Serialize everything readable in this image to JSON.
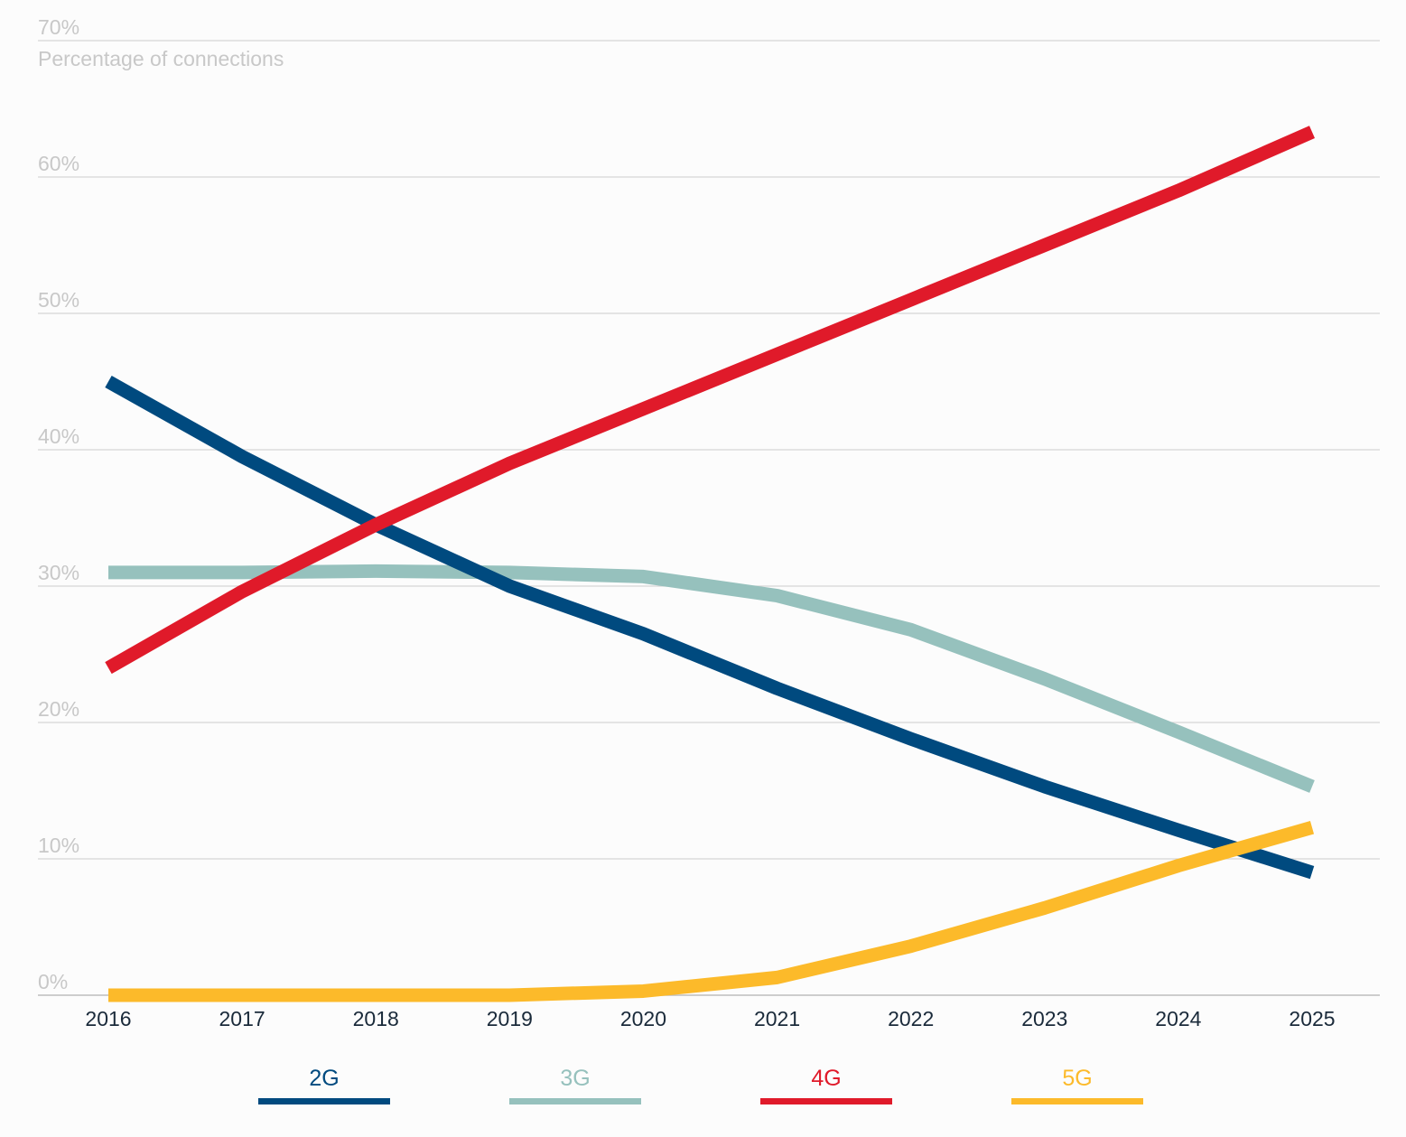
{
  "chart_data": {
    "type": "line",
    "ylabel": "Percentage of connections",
    "ylim": [
      0,
      70
    ],
    "y_ticks": [
      "0%",
      "10%",
      "20%",
      "30%",
      "40%",
      "50%",
      "60%",
      "70%"
    ],
    "y_tick_values": [
      0,
      10,
      20,
      30,
      40,
      50,
      60,
      70
    ],
    "x": [
      "2016",
      "2017",
      "2018",
      "2019",
      "2020",
      "2021",
      "2022",
      "2023",
      "2024",
      "2025"
    ],
    "grid": true,
    "legend_placement": "bottom",
    "series": [
      {
        "name": "2G",
        "color": "#004a7f",
        "values": [
          45,
          39.5,
          34.5,
          30,
          26.5,
          22.5,
          18.8,
          15.3,
          12.1,
          9
        ]
      },
      {
        "name": "3G",
        "color": "#96c1bd",
        "values": [
          31,
          31,
          31.1,
          31,
          30.7,
          29.3,
          26.8,
          23.2,
          19.3,
          15.3
        ]
      },
      {
        "name": "4G",
        "color": "#e01a2a",
        "values": [
          24,
          29.6,
          34.5,
          39,
          43,
          47,
          51,
          55,
          59,
          63.3
        ]
      },
      {
        "name": "5G",
        "color": "#fcba2a",
        "values": [
          0,
          0,
          0,
          0,
          0.3,
          1.3,
          3.6,
          6.4,
          9.5,
          12.3
        ]
      }
    ]
  }
}
